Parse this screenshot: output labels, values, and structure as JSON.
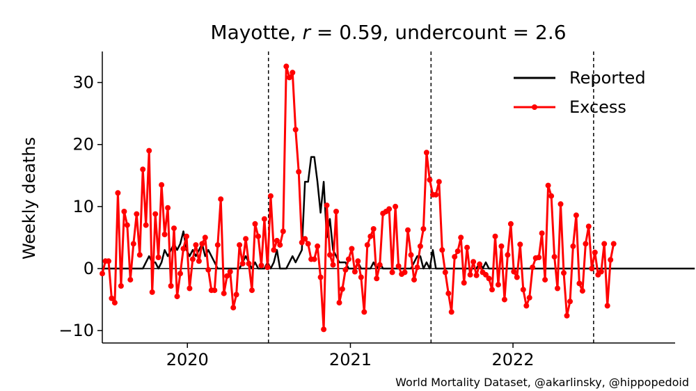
{
  "chart_data": {
    "type": "line",
    "title": "Mayotte, r = 0.59, undercount = 2.6",
    "title_parts": {
      "region": "Mayotte",
      "r_label": "r",
      "r_value": "0.59",
      "undercount_label": "undercount",
      "undercount_value": "2.6"
    },
    "xlabel": "",
    "ylabel": "Weekly deaths",
    "xlim": [
      "2019-06-24",
      "2022-12-31"
    ],
    "ylim": [
      -12,
      35
    ],
    "x_ticks": [
      {
        "date": "2020-01-01",
        "label": "2020"
      },
      {
        "date": "2021-01-01",
        "label": "2021"
      },
      {
        "date": "2022-01-01",
        "label": "2022"
      }
    ],
    "y_ticks": [
      -10,
      0,
      10,
      20,
      30
    ],
    "y_tick_labels": [
      "−10",
      "0",
      "10",
      "20",
      "30"
    ],
    "vertical_dashed_lines": [
      "2020-07-01",
      "2021-07-01",
      "2022-07-01"
    ],
    "zero_line": true,
    "grid": false,
    "legend": {
      "placement": "top-right",
      "entries": [
        "Reported",
        "Excess"
      ]
    },
    "series": [
      {
        "name": "Reported",
        "color": "#000000",
        "marker": "none",
        "x_start": "2019-06-24",
        "interval_days": 7,
        "values": [
          0,
          0,
          0,
          0,
          0,
          0,
          0,
          0,
          0,
          0,
          0,
          0,
          0,
          0,
          1,
          2,
          1,
          1,
          0,
          1,
          3,
          2,
          3,
          4,
          3,
          4,
          6,
          3,
          2,
          3,
          2,
          3,
          4,
          2,
          3,
          2,
          1,
          0,
          0,
          0,
          0,
          0,
          0,
          0,
          0,
          1,
          2,
          1,
          0,
          1,
          0,
          0,
          0,
          1,
          0,
          1,
          3,
          0,
          0,
          0,
          1,
          2,
          1,
          2,
          3,
          14,
          14,
          18,
          18,
          14,
          9,
          14,
          5,
          8,
          3,
          2,
          1,
          1,
          1,
          0,
          0,
          0,
          1,
          0,
          0,
          0,
          0,
          1,
          0,
          1,
          0,
          0,
          0,
          0,
          0,
          0,
          0,
          0,
          0,
          0,
          1,
          2,
          2,
          0,
          1,
          0,
          3,
          0,
          0,
          0,
          0,
          0,
          0,
          0,
          0,
          0,
          0,
          0,
          0,
          0,
          0,
          1,
          0,
          1,
          0,
          0,
          0,
          0,
          0,
          0,
          0,
          0,
          0,
          0,
          0,
          0,
          0,
          0,
          0,
          0,
          0,
          0,
          0,
          0,
          0,
          0,
          0,
          0,
          0,
          0,
          0,
          0,
          0,
          0,
          0,
          0,
          0,
          0,
          0,
          0,
          0,
          0,
          0,
          0,
          0,
          0,
          0,
          0,
          0,
          0,
          0,
          0,
          0,
          0,
          0,
          0,
          0,
          0,
          0,
          0,
          0,
          0,
          0,
          0,
          0,
          0,
          0,
          0,
          0,
          0,
          0
        ]
      },
      {
        "name": "Excess",
        "color": "#ff0000",
        "marker": "circle",
        "x_start": "2019-06-24",
        "interval_days": 7,
        "values": [
          -0.8,
          1.2,
          1.2,
          -4.8,
          -5.5,
          12.2,
          -2.8,
          9.2,
          7.0,
          -1.8,
          4.0,
          8.8,
          2.2,
          16.0,
          7.0,
          19.0,
          -3.8,
          8.8,
          1.8,
          13.5,
          5.5,
          9.8,
          -2.8,
          6.5,
          -4.5,
          -0.8,
          3.2,
          5.2,
          -3.2,
          1.5,
          3.8,
          1.2,
          4.0,
          5.0,
          -0.2,
          -3.5,
          -3.5,
          3.8,
          11.2,
          -4.0,
          -1.2,
          -0.5,
          -6.3,
          -4.2,
          3.8,
          0.8,
          4.8,
          0.8,
          -3.5,
          7.2,
          5.2,
          0.5,
          8.0,
          0.2,
          11.7,
          3.0,
          4.5,
          3.8,
          6.0,
          32.6,
          30.8,
          31.6,
          22.4,
          15.6,
          4.2,
          4.8,
          4.0,
          1.5,
          1.5,
          3.6,
          -1.4,
          -9.8,
          10.2,
          2.2,
          0.6,
          9.2,
          -5.5,
          -3.3,
          -0.2,
          1.5,
          3.2,
          -0.5,
          1.2,
          -1.4,
          -7.0,
          3.8,
          5.2,
          6.4,
          -1.6,
          0.6,
          8.9,
          9.2,
          9.6,
          -0.6,
          10.0,
          0.4,
          -0.9,
          -0.6,
          6.2,
          2.2,
          -1.8,
          0.2,
          3.6,
          6.4,
          18.7,
          14.3,
          11.9,
          11.9,
          14.0,
          3.0,
          -0.6,
          -4.0,
          -7.0,
          1.9,
          2.8,
          5.0,
          -2.3,
          3.4,
          -1.0,
          1.1,
          -1.1,
          0.7,
          -0.6,
          -1.0,
          -1.6,
          -3.4,
          5.2,
          -2.6,
          3.6,
          -5.0,
          2.2,
          7.2,
          -0.5,
          -1.4,
          3.9,
          -3.4,
          -6.0,
          -4.7,
          0.2,
          1.7,
          1.8,
          5.7,
          -1.8,
          13.4,
          11.7,
          1.9,
          -3.2,
          10.4,
          -0.7,
          -7.6,
          -5.3,
          3.6,
          8.6,
          -2.4,
          -3.6,
          4.0,
          6.8,
          0.0,
          2.6,
          -1.0,
          -0.5,
          4.0,
          -6.0,
          1.4,
          4.0
        ]
      }
    ]
  },
  "credit": "World Mortality Dataset, @akarlinsky, @hippopedoid"
}
